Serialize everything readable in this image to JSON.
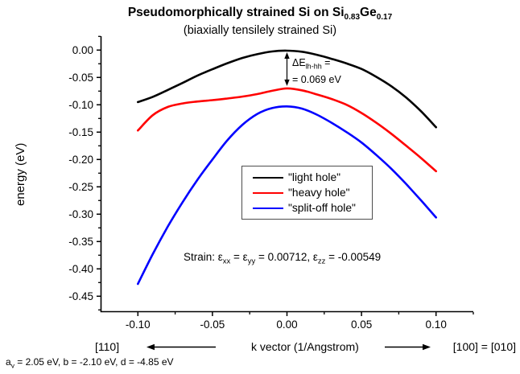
{
  "title": {
    "part1": "Pseudomorphically strained Si on Si",
    "sub1": "0.83",
    "part2": "Ge",
    "sub2": "0.17"
  },
  "subtitle": "(biaxially tensilely strained Si)",
  "y_axis_title": "energy (eV)",
  "x_axis_title": "k vector (1/Angstrom)",
  "direction_left": "[110]",
  "direction_right": "[100] = [010]",
  "delta_annotation": {
    "line1_main": "ΔE",
    "line1_sub": "lh-hh",
    "line1_end": " =",
    "line2": "= 0.069 eV"
  },
  "strain_annotation": {
    "p1": "Strain: ε",
    "s1": "xx",
    "p2": " = ε",
    "s2": "yy",
    "p3": " = 0.00712, ε",
    "s3": "zz",
    "p4": " = -0.00549"
  },
  "footnote": {
    "p1": "a",
    "s1": "v",
    "p2": " = 2.05 eV, b = -2.10 eV, d = -4.85 eV"
  },
  "legend": {
    "items": [
      {
        "label": "\"light hole\"",
        "color": "#000000"
      },
      {
        "label": "\"heavy hole\"",
        "color": "#ff0000"
      },
      {
        "label": "\"split-off hole\"",
        "color": "#0000ff"
      }
    ]
  },
  "chart_data": {
    "type": "line",
    "title": "Pseudomorphically strained Si on Si(0.83)Ge(0.17)",
    "subtitle": "(biaxially tensilely strained Si)",
    "xlabel": "k vector (1/Angstrom)",
    "ylabel": "energy (eV)",
    "xlim": [
      -0.125,
      0.125
    ],
    "ylim": [
      -0.4775,
      0.0254
    ],
    "grid": false,
    "legend_position": "center",
    "x_ticks": {
      "major": [
        -0.1,
        -0.05,
        0.0,
        0.05,
        0.1
      ],
      "labels": [
        "-0.10",
        "-0.05",
        "0.00",
        "0.05",
        "0.10"
      ],
      "minor": [
        -0.075,
        -0.025,
        0.025,
        0.075,
        0.125
      ]
    },
    "y_ticks": {
      "major": [
        0.0,
        -0.05,
        -0.1,
        -0.15,
        -0.2,
        -0.25,
        -0.3,
        -0.35,
        -0.4,
        -0.45
      ],
      "labels": [
        "0.00",
        "-0.05",
        "-0.10",
        "-0.15",
        "-0.20",
        "-0.25",
        "-0.30",
        "-0.35",
        "-0.40",
        "-0.45"
      ],
      "minor": [
        0.025,
        -0.025,
        -0.075,
        -0.125,
        -0.175,
        -0.225,
        -0.275,
        -0.325,
        -0.375,
        -0.425,
        -0.475
      ]
    },
    "series": [
      {
        "name": "light hole",
        "color": "#000000",
        "points": [
          [
            -0.1,
            -0.095
          ],
          [
            -0.09,
            -0.0855
          ],
          [
            -0.08,
            -0.073
          ],
          [
            -0.07,
            -0.06
          ],
          [
            -0.06,
            -0.0465
          ],
          [
            -0.05,
            -0.035
          ],
          [
            -0.04,
            -0.024
          ],
          [
            -0.03,
            -0.0145
          ],
          [
            -0.02,
            -0.0075
          ],
          [
            -0.01,
            -0.0025
          ],
          [
            0.0,
            -0.001
          ],
          [
            0.01,
            -0.003
          ],
          [
            0.02,
            -0.0085
          ],
          [
            0.03,
            -0.016
          ],
          [
            0.04,
            -0.0245
          ],
          [
            0.05,
            -0.0345
          ],
          [
            0.06,
            -0.049
          ],
          [
            0.07,
            -0.066
          ],
          [
            0.08,
            -0.087
          ],
          [
            0.09,
            -0.112
          ],
          [
            0.1,
            -0.141
          ]
        ]
      },
      {
        "name": "heavy hole",
        "color": "#ff0000",
        "points": [
          [
            -0.1,
            -0.147
          ],
          [
            -0.09,
            -0.119
          ],
          [
            -0.08,
            -0.104
          ],
          [
            -0.07,
            -0.0975
          ],
          [
            -0.06,
            -0.094
          ],
          [
            -0.05,
            -0.0915
          ],
          [
            -0.04,
            -0.0885
          ],
          [
            -0.03,
            -0.085
          ],
          [
            -0.02,
            -0.0805
          ],
          [
            -0.01,
            -0.0745
          ],
          [
            0.0,
            -0.07
          ],
          [
            0.01,
            -0.0735
          ],
          [
            0.02,
            -0.081
          ],
          [
            0.03,
            -0.0895
          ],
          [
            0.04,
            -0.1
          ],
          [
            0.05,
            -0.115
          ],
          [
            0.06,
            -0.133
          ],
          [
            0.07,
            -0.153
          ],
          [
            0.08,
            -0.175
          ],
          [
            0.09,
            -0.1975
          ],
          [
            0.1,
            -0.2215
          ]
        ]
      },
      {
        "name": "split-off hole",
        "color": "#0000ff",
        "points": [
          [
            -0.1,
            -0.4275
          ],
          [
            -0.09,
            -0.373
          ],
          [
            -0.08,
            -0.323
          ],
          [
            -0.07,
            -0.278
          ],
          [
            -0.06,
            -0.237
          ],
          [
            -0.05,
            -0.2
          ],
          [
            -0.04,
            -0.165
          ],
          [
            -0.03,
            -0.137
          ],
          [
            -0.02,
            -0.117
          ],
          [
            -0.01,
            -0.106
          ],
          [
            0.0,
            -0.103
          ],
          [
            0.01,
            -0.107
          ],
          [
            0.02,
            -0.118
          ],
          [
            0.03,
            -0.133
          ],
          [
            0.04,
            -0.15
          ],
          [
            0.05,
            -0.169
          ],
          [
            0.06,
            -0.192
          ],
          [
            0.07,
            -0.217
          ],
          [
            0.08,
            -0.245
          ],
          [
            0.09,
            -0.275
          ],
          [
            0.1,
            -0.306
          ]
        ]
      }
    ],
    "annotations": {
      "delta_arrow": {
        "k": 0.0,
        "e_top": -0.004,
        "e_bottom": -0.0655
      },
      "delta_text": "ΔE(lh-hh) = 0.069 eV",
      "strain_text": "Strain: εxx = εyy = 0.00712, εzz = -0.00549"
    }
  }
}
